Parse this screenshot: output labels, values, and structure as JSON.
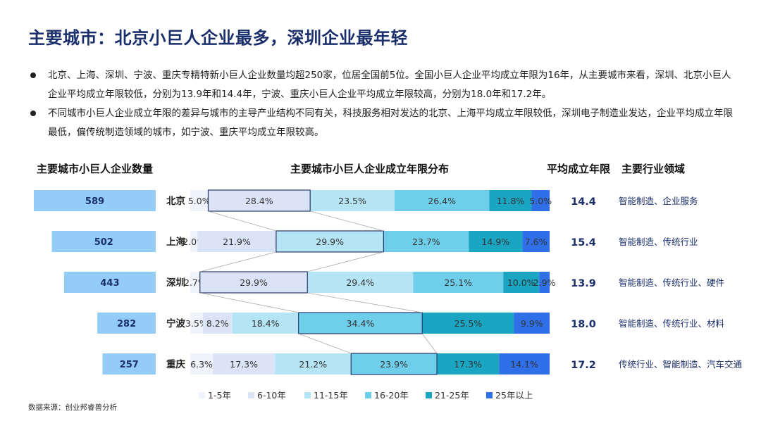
{
  "title": "主要城市：北京小巨人企业最多，深圳企业最年轻",
  "bullets": [
    "北京、上海、深圳、宁波、重庆专精特新小巨人企业数量均超250家，位居全国前5位。全国小巨人企业平均成立年限为16年，从主要城市来看，深圳、北京小巨人企业平均成立年限较低，分别为13.9年和14.4年，宁波、重庆小巨人企业平均成立年限较高，分别为18.0年和17.2年。",
    "不同城市小巨人企业成立年限的差异与城市的主导产业结构不同有关，科技服务相对发达的北京、上海平均成立年限较低，深圳电子制造业发达，企业平均成立年限最低，偏传统制造领域的城市，如宁波、重庆平均成立年限较高。"
  ],
  "headers": {
    "count": "主要城市小巨人企业数量",
    "distribution": "主要城市小巨人企业成立年限分布",
    "avg": "平均成立年限",
    "industry": "主要行业领域"
  },
  "source": "数据来源：创业邦睿兽分析",
  "chart_data": {
    "type": "bar",
    "legend_position": "bottom",
    "categories": [
      "北京",
      "上海",
      "深圳",
      "宁波",
      "重庆"
    ],
    "counts": [
      589,
      502,
      443,
      282,
      257
    ],
    "avg_years": [
      "14.4",
      "15.4",
      "13.9",
      "18.0",
      "17.2"
    ],
    "industries": [
      "智能制造、企业服务",
      "智能制造、传统行业",
      "智能制造、传统行业、硬件",
      "智能制造、传统行业、材料",
      "传统行业、智能制造、汽车交通"
    ],
    "series": [
      {
        "name": "1-5年",
        "color": "#eef3fc",
        "values": [
          5.0,
          2.0,
          2.7,
          3.5,
          6.3
        ]
      },
      {
        "name": "6-10年",
        "color": "#dbe3f7",
        "values": [
          28.4,
          21.9,
          29.9,
          8.2,
          17.3
        ]
      },
      {
        "name": "11-15年",
        "color": "#b5e4f5",
        "values": [
          23.5,
          29.9,
          29.4,
          18.4,
          21.2
        ]
      },
      {
        "name": "16-20年",
        "color": "#6fcfea",
        "values": [
          26.4,
          23.7,
          25.1,
          34.4,
          23.9
        ]
      },
      {
        "name": "21-25年",
        "color": "#1aa6c2",
        "values": [
          11.8,
          14.9,
          10.0,
          25.5,
          17.3
        ]
      },
      {
        "name": "25年以上",
        "color": "#2f6fe8",
        "values": [
          5.0,
          7.6,
          2.9,
          9.9,
          14.1
        ]
      }
    ],
    "highlight_segment": [
      1,
      2,
      1,
      3,
      3
    ],
    "count_bar_color": "#93ccf7",
    "avg_color": "#1a2f6b",
    "industry_color": "#1a2f6b"
  }
}
